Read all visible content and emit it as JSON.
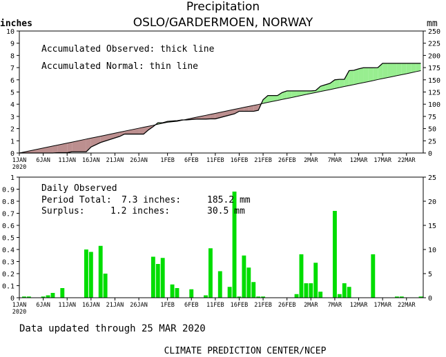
{
  "chart_data": [
    {
      "type": "area",
      "title": "Precipitation",
      "subtitle": "OSLO/GARDERMOEN, NORWAY",
      "ylabel_left": "inches",
      "ylabel_right": "mm",
      "annotations": [
        "Accumulated Observed: thick line",
        "Accumulated Normal: thin line"
      ],
      "ylim": [
        0,
        10
      ],
      "ylim_right": [
        0,
        250
      ],
      "yticks_left": [
        "0",
        "1",
        "2",
        "3",
        "4",
        "5",
        "6",
        "7",
        "8",
        "9",
        "10"
      ],
      "yticks_right": [
        "0",
        "25",
        "50",
        "75",
        "100",
        "125",
        "150",
        "175",
        "200",
        "225",
        "250"
      ],
      "xticks": [
        "1JAN",
        "6JAN",
        "11JAN",
        "16JAN",
        "21JAN",
        "26JAN",
        "1FEB",
        "6FEB",
        "11FEB",
        "16FEB",
        "21FEB",
        "26FEB",
        "2MAR",
        "7MAR",
        "12MAR",
        "17MAR",
        "22MAR"
      ],
      "x_year_label": "2020",
      "colors": {
        "surplus": "#98ee90",
        "deficit": "#bc8f8f",
        "line": "#000000"
      },
      "x_days": [
        1,
        8,
        9,
        11,
        12,
        15,
        16,
        18,
        22,
        23,
        26,
        27,
        28,
        29,
        30,
        31,
        32,
        34,
        35,
        36,
        38,
        39,
        40,
        41,
        42,
        46,
        47,
        48,
        49,
        50,
        51,
        52,
        53,
        55,
        56,
        57,
        58,
        59,
        60,
        61,
        62,
        63,
        64,
        65,
        66,
        67,
        68,
        69,
        70,
        71,
        72,
        73,
        74,
        75,
        76,
        77,
        78,
        79,
        80,
        81,
        82,
        83,
        84,
        85
      ],
      "series": [
        {
          "name": "Accumulated Observed",
          "values": [
            0.0,
            0.0,
            0.03,
            0.03,
            0.1,
            0.1,
            0.49,
            0.86,
            1.36,
            1.55,
            1.55,
            1.55,
            1.89,
            2.16,
            2.48,
            2.48,
            2.59,
            2.65,
            2.71,
            2.71,
            2.78,
            2.78,
            2.78,
            2.8,
            2.8,
            3.21,
            3.42,
            3.42,
            3.42,
            3.42,
            3.5,
            4.37,
            4.71,
            4.71,
            4.96,
            5.09,
            5.09,
            5.09,
            5.09,
            5.09,
            5.09,
            5.12,
            5.47,
            5.59,
            5.71,
            6.0,
            6.04,
            6.04,
            6.75,
            6.78,
            6.9,
            6.99,
            6.99,
            6.99,
            7.0,
            7.35,
            7.35,
            7.35,
            7.35,
            7.35,
            7.35,
            7.35,
            7.35,
            7.35
          ]
        },
        {
          "name": "Accumulated Normal",
          "values": [
            0.0,
            0.57,
            0.65,
            0.81,
            0.89,
            1.14,
            1.22,
            1.38,
            1.71,
            1.79,
            2.03,
            2.11,
            2.19,
            2.27,
            2.36,
            2.44,
            2.52,
            2.6,
            2.68,
            2.76,
            2.93,
            3.01,
            3.09,
            3.17,
            3.25,
            3.58,
            3.66,
            3.74,
            3.82,
            3.9,
            3.98,
            4.07,
            4.15,
            4.31,
            4.39,
            4.47,
            4.55,
            4.63,
            4.72,
            4.8,
            4.88,
            4.96,
            5.04,
            5.12,
            5.2,
            5.28,
            5.37,
            5.45,
            5.53,
            5.61,
            5.69,
            5.77,
            5.85,
            5.93,
            6.02,
            6.1,
            6.18,
            6.26,
            6.34,
            6.42,
            6.5,
            6.58,
            6.67,
            6.75
          ]
        }
      ]
    },
    {
      "type": "bar",
      "title": "Daily Observed",
      "ylim": [
        0,
        1
      ],
      "ylim_right": [
        0,
        25
      ],
      "yticks_left": [
        "0",
        "0.1",
        "0.2",
        "0.3",
        "0.4",
        "0.5",
        "0.6",
        "0.7",
        "0.8",
        "0.9",
        "1"
      ],
      "yticks_right": [
        "0",
        "5",
        "10",
        "15",
        "20",
        "25"
      ],
      "xticks": [
        "1JAN",
        "6JAN",
        "11JAN",
        "16JAN",
        "21JAN",
        "26JAN",
        "1FEB",
        "6FEB",
        "11FEB",
        "16FEB",
        "21FEB",
        "26FEB",
        "2MAR",
        "7MAR",
        "12MAR",
        "17MAR",
        "22MAR"
      ],
      "x_year_label": "2020",
      "stats": {
        "total_label": "Period Total:",
        "total_in": "7.3 inches:",
        "total_mm": "185.2 mm",
        "surplus_label": "Surplus:",
        "surplus_in": "1.2 inches:",
        "surplus_mm": "30.5 mm"
      },
      "bar_color": "#00dd00",
      "x_days": [
        2,
        3,
        6,
        7,
        8,
        10,
        15,
        16,
        18,
        19,
        29,
        30,
        31,
        33,
        34,
        37,
        40,
        41,
        43,
        45,
        46,
        47,
        48,
        49,
        50,
        51,
        52,
        59,
        60,
        61,
        62,
        63,
        64,
        67,
        68,
        69,
        70,
        75,
        80,
        81,
        85
      ],
      "values": [
        0.01,
        0.01,
        0.01,
        0.02,
        0.04,
        0.08,
        0.4,
        0.38,
        0.43,
        0.2,
        0.34,
        0.28,
        0.33,
        0.11,
        0.08,
        0.07,
        0.02,
        0.41,
        0.22,
        0.09,
        0.88,
        0.01,
        0.35,
        0.25,
        0.13,
        0.01,
        0.01,
        0.03,
        0.36,
        0.12,
        0.12,
        0.29,
        0.05,
        0.72,
        0.03,
        0.12,
        0.09,
        0.36,
        0.01,
        0.01,
        0.01
      ]
    }
  ],
  "footer": {
    "updated": "Data updated through 25 MAR 2020",
    "credit": "CLIMATE PREDICTION CENTER/NCEP"
  }
}
